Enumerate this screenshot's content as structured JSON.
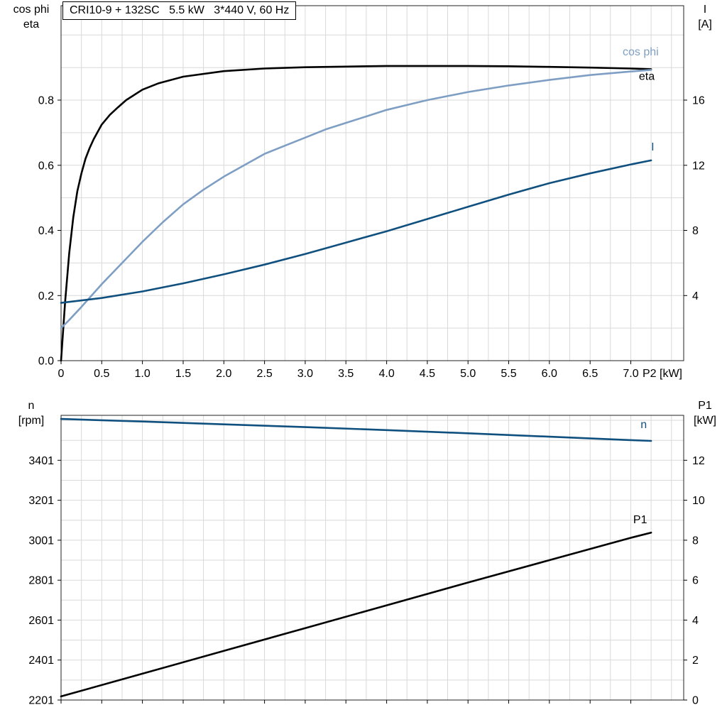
{
  "title_box": "CRI10-9 + 132SC   5.5 kW   3*440 V, 60 Hz",
  "corner_labels": {
    "top_left": [
      "cos phi",
      "eta"
    ],
    "top_right": [
      "I",
      "[A]"
    ],
    "bottom_left": [
      "n",
      "[rpm]"
    ],
    "bottom_right": [
      "P1",
      "[kW]"
    ]
  },
  "colors": {
    "grid": "#d9d9d9",
    "frame": "#222222",
    "eta": "#000000",
    "cos_phi": "#7e9fc3",
    "current": "#10507f",
    "speed": "#10507f",
    "p1": "#000000"
  },
  "chart_data": [
    {
      "type": "line",
      "title": "CRI10-9 + 132SC   5.5 kW   3*440 V, 60 Hz",
      "xlabel": "P2 [kW]",
      "ylabel_left": "cos phi / eta",
      "ylabel_right": "I [A]",
      "xlim": [
        0,
        7.65
      ],
      "ylim_left": [
        0,
        1.09
      ],
      "ylim_right": [
        0,
        21.8
      ],
      "grid": {
        "x_step": 0.25,
        "y_step_left": 0.1
      },
      "x_ticks": {
        "values": [
          0,
          0.5,
          1,
          1.5,
          2,
          2.5,
          3,
          3.5,
          4,
          4.5,
          5,
          5.5,
          6,
          6.5,
          7
        ],
        "labels": [
          "0",
          "0.5",
          "1.0",
          "1.5",
          "2.0",
          "2.5",
          "3.0",
          "3.5",
          "4.0",
          "4.5",
          "5.0",
          "5.5",
          "6.0",
          "6.5",
          "7.0"
        ]
      },
      "y_left_ticks": {
        "values": [
          0,
          0.2,
          0.4,
          0.6,
          0.8
        ],
        "labels": [
          "0.0",
          "0.2",
          "0.4",
          "0.6",
          "0.8"
        ]
      },
      "y_right_ticks": {
        "values": [
          4,
          8,
          12,
          16
        ],
        "labels": [
          "4",
          "8",
          "12",
          "16"
        ]
      },
      "series": [
        {
          "name": "eta",
          "axis": "left",
          "color": "#000000",
          "label_pos": [
            7.1,
            0.862
          ],
          "points": [
            [
              0,
              0
            ],
            [
              0.05,
              0.18
            ],
            [
              0.1,
              0.33
            ],
            [
              0.15,
              0.44
            ],
            [
              0.2,
              0.52
            ],
            [
              0.25,
              0.575
            ],
            [
              0.3,
              0.62
            ],
            [
              0.35,
              0.652
            ],
            [
              0.4,
              0.68
            ],
            [
              0.5,
              0.725
            ],
            [
              0.6,
              0.755
            ],
            [
              0.7,
              0.778
            ],
            [
              0.8,
              0.8
            ],
            [
              1.0,
              0.832
            ],
            [
              1.2,
              0.852
            ],
            [
              1.5,
              0.872
            ],
            [
              2.0,
              0.889
            ],
            [
              2.5,
              0.897
            ],
            [
              3.0,
              0.901
            ],
            [
              3.5,
              0.903
            ],
            [
              4.0,
              0.905
            ],
            [
              4.5,
              0.905
            ],
            [
              5.0,
              0.905
            ],
            [
              5.5,
              0.904
            ],
            [
              6.0,
              0.902
            ],
            [
              6.5,
              0.9
            ],
            [
              7.0,
              0.897
            ],
            [
              7.25,
              0.895
            ]
          ]
        },
        {
          "name": "cos phi",
          "axis": "left",
          "color": "#7e9fc3",
          "label_pos": [
            6.9,
            0.937
          ],
          "points": [
            [
              0,
              0.1
            ],
            [
              0.1,
              0.125
            ],
            [
              0.25,
              0.165
            ],
            [
              0.5,
              0.235
            ],
            [
              0.75,
              0.3
            ],
            [
              1.0,
              0.365
            ],
            [
              1.25,
              0.425
            ],
            [
              1.5,
              0.48
            ],
            [
              1.75,
              0.525
            ],
            [
              2.0,
              0.565
            ],
            [
              2.25,
              0.6
            ],
            [
              2.5,
              0.635
            ],
            [
              2.75,
              0.66
            ],
            [
              3.0,
              0.685
            ],
            [
              3.25,
              0.71
            ],
            [
              3.5,
              0.73
            ],
            [
              3.75,
              0.75
            ],
            [
              4.0,
              0.77
            ],
            [
              4.25,
              0.785
            ],
            [
              4.5,
              0.8
            ],
            [
              5.0,
              0.825
            ],
            [
              5.5,
              0.845
            ],
            [
              6.0,
              0.862
            ],
            [
              6.5,
              0.877
            ],
            [
              7.0,
              0.888
            ],
            [
              7.25,
              0.893
            ]
          ]
        },
        {
          "name": "I",
          "axis": "right",
          "color": "#10507f",
          "label_pos": [
            7.25,
            12.9
          ],
          "points": [
            [
              0,
              3.55
            ],
            [
              0.5,
              3.85
            ],
            [
              1.0,
              4.25
            ],
            [
              1.5,
              4.75
            ],
            [
              2.0,
              5.3
            ],
            [
              2.5,
              5.9
            ],
            [
              3.0,
              6.55
            ],
            [
              3.5,
              7.25
            ],
            [
              4.0,
              7.95
            ],
            [
              4.5,
              8.7
            ],
            [
              5.0,
              9.45
            ],
            [
              5.5,
              10.2
            ],
            [
              6.0,
              10.9
            ],
            [
              6.5,
              11.5
            ],
            [
              7.0,
              12.05
            ],
            [
              7.25,
              12.3
            ]
          ]
        }
      ]
    },
    {
      "type": "line",
      "title": "",
      "xlabel": "",
      "ylabel_left": "n [rpm]",
      "ylabel_right": "P1 [kW]",
      "xlim": [
        0,
        7.65
      ],
      "ylim_left": [
        2201,
        3626
      ],
      "ylim_right": [
        0,
        14.25
      ],
      "grid": {
        "x_step": 0.25,
        "y_step_left": 100
      },
      "x_ticks": {
        "values": [
          0,
          0.5,
          1,
          1.5,
          2,
          2.5,
          3,
          3.5,
          4,
          4.5,
          5,
          5.5,
          6,
          6.5,
          7
        ],
        "labels": []
      },
      "y_left_ticks": {
        "values": [
          2201,
          2401,
          2601,
          2801,
          3001,
          3201,
          3401
        ],
        "labels": [
          "2201",
          "2401",
          "2601",
          "2801",
          "3001",
          "3201",
          "3401"
        ]
      },
      "y_right_ticks": {
        "values": [
          0,
          2,
          4,
          6,
          8,
          10,
          12
        ],
        "labels": [
          "0",
          "2",
          "4",
          "6",
          "8",
          "10",
          "12"
        ]
      },
      "series": [
        {
          "name": "n",
          "axis": "left",
          "color": "#10507f",
          "label_pos": [
            7.12,
            3562
          ],
          "points": [
            [
              0,
              3608
            ],
            [
              1,
              3595
            ],
            [
              2,
              3581
            ],
            [
              3,
              3567
            ],
            [
              4,
              3552
            ],
            [
              5,
              3536
            ],
            [
              6,
              3519
            ],
            [
              7,
              3502
            ],
            [
              7.25,
              3498
            ]
          ]
        },
        {
          "name": "P1",
          "axis": "right",
          "color": "#000000",
          "label_pos": [
            7.03,
            8.85
          ],
          "points": [
            [
              0,
              0.18
            ],
            [
              1,
              1.32
            ],
            [
              2,
              2.46
            ],
            [
              3,
              3.6
            ],
            [
              4,
              4.74
            ],
            [
              5,
              5.88
            ],
            [
              6,
              7.0
            ],
            [
              7,
              8.12
            ],
            [
              7.25,
              8.38
            ]
          ]
        }
      ]
    }
  ]
}
